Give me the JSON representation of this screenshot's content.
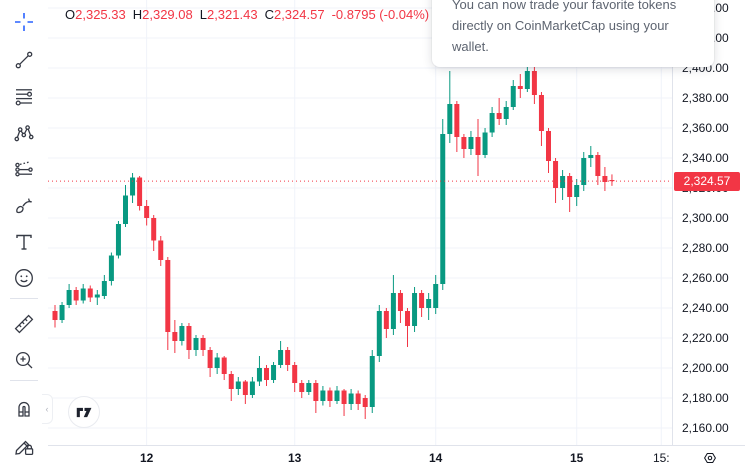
{
  "legend": {
    "items": [
      {
        "label": "O",
        "value": "2,325.33"
      },
      {
        "label": "H",
        "value": "2,329.08"
      },
      {
        "label": "L",
        "value": "2,321.43"
      },
      {
        "label": "C",
        "value": "2,324.57"
      }
    ],
    "change": "-0.8795 (-0.04%)"
  },
  "tooltip": {
    "text": "You can now trade your favorite tokens directly on CoinMarketCap using your wallet."
  },
  "price_scale": {
    "current_price_label": "2,324.57"
  },
  "toolbar": {
    "tools": [
      "crosshair",
      "trend-line",
      "horizontal-lines",
      "xabcd-pattern",
      "long-short-position",
      "brush",
      "text",
      "emoji",
      "measure",
      "zoom-in",
      "magnet",
      "drawing-mode-lock"
    ]
  },
  "branding": {
    "logo": "tradingview"
  },
  "colors": {
    "up": "#089981",
    "down": "#f23645",
    "accent": "#2962ff",
    "text": "#131722",
    "grid": "#f0f3fa",
    "axis_border": "#e0e3eb",
    "price_line": "#f23645",
    "price_tag_bg": "#f23645"
  },
  "chart_data": {
    "type": "candlestick",
    "title": "",
    "last_candle_ohlc": {
      "open": 2325.33,
      "high": 2329.08,
      "low": 2321.43,
      "close": 2324.57,
      "change": -0.8795,
      "change_pct": -0.04
    },
    "last_price": 2324.57,
    "price_axis": {
      "min": 2160,
      "max": 2440,
      "step": 20
    },
    "time_ticks": [
      {
        "label": "12",
        "index": 13,
        "major": true
      },
      {
        "label": "13",
        "index": 34,
        "major": true
      },
      {
        "label": "14",
        "index": 54,
        "major": true
      },
      {
        "label": "15",
        "index": 74,
        "major": true
      },
      {
        "label": "15:",
        "index": 86,
        "major": false
      }
    ],
    "candles": [
      [
        2238,
        2242,
        2227,
        2232
      ],
      [
        2232,
        2244,
        2230,
        2242
      ],
      [
        2242,
        2256,
        2240,
        2252
      ],
      [
        2252,
        2254,
        2242,
        2245
      ],
      [
        2245,
        2256,
        2243,
        2253
      ],
      [
        2253,
        2255,
        2244,
        2247
      ],
      [
        2247,
        2252,
        2242,
        2249
      ],
      [
        2248,
        2262,
        2246,
        2258
      ],
      [
        2258,
        2277,
        2255,
        2275
      ],
      [
        2275,
        2298,
        2273,
        2296
      ],
      [
        2296,
        2322,
        2294,
        2315
      ],
      [
        2315,
        2330,
        2310,
        2327
      ],
      [
        2327,
        2328,
        2305,
        2308
      ],
      [
        2308,
        2312,
        2295,
        2300
      ],
      [
        2300,
        2302,
        2278,
        2285
      ],
      [
        2285,
        2288,
        2268,
        2272
      ],
      [
        2272,
        2274,
        2212,
        2224
      ],
      [
        2224,
        2232,
        2210,
        2218
      ],
      [
        2218,
        2230,
        2215,
        2228
      ],
      [
        2228,
        2230,
        2206,
        2212
      ],
      [
        2212,
        2222,
        2208,
        2220
      ],
      [
        2220,
        2222,
        2208,
        2212
      ],
      [
        2212,
        2214,
        2194,
        2200
      ],
      [
        2200,
        2210,
        2196,
        2207
      ],
      [
        2207,
        2208,
        2192,
        2196
      ],
      [
        2196,
        2198,
        2178,
        2186
      ],
      [
        2186,
        2194,
        2182,
        2191
      ],
      [
        2191,
        2192,
        2176,
        2182
      ],
      [
        2182,
        2194,
        2180,
        2191
      ],
      [
        2191,
        2208,
        2188,
        2200
      ],
      [
        2200,
        2202,
        2188,
        2192
      ],
      [
        2192,
        2204,
        2190,
        2202
      ],
      [
        2202,
        2218,
        2200,
        2212
      ],
      [
        2212,
        2214,
        2198,
        2202
      ],
      [
        2202,
        2204,
        2184,
        2190
      ],
      [
        2190,
        2192,
        2180,
        2184
      ],
      [
        2184,
        2192,
        2182,
        2190
      ],
      [
        2190,
        2192,
        2170,
        2178
      ],
      [
        2178,
        2188,
        2175,
        2185
      ],
      [
        2185,
        2187,
        2174,
        2178
      ],
      [
        2178,
        2188,
        2176,
        2185
      ],
      [
        2185,
        2186,
        2168,
        2176
      ],
      [
        2176,
        2186,
        2172,
        2183
      ],
      [
        2183,
        2185,
        2172,
        2176
      ],
      [
        2180,
        2182,
        2166,
        2174
      ],
      [
        2174,
        2212,
        2170,
        2208
      ],
      [
        2208,
        2242,
        2204,
        2238
      ],
      [
        2238,
        2240,
        2220,
        2226
      ],
      [
        2226,
        2262,
        2222,
        2250
      ],
      [
        2250,
        2252,
        2230,
        2238
      ],
      [
        2238,
        2240,
        2214,
        2228
      ],
      [
        2228,
        2254,
        2224,
        2250
      ],
      [
        2250,
        2252,
        2234,
        2240
      ],
      [
        2240,
        2250,
        2232,
        2246
      ],
      [
        2240,
        2262,
        2236,
        2256
      ],
      [
        2256,
        2366,
        2252,
        2356
      ],
      [
        2356,
        2398,
        2350,
        2376
      ],
      [
        2376,
        2378,
        2344,
        2354
      ],
      [
        2354,
        2356,
        2340,
        2346
      ],
      [
        2346,
        2358,
        2342,
        2354
      ],
      [
        2354,
        2366,
        2328,
        2342
      ],
      [
        2342,
        2360,
        2340,
        2357
      ],
      [
        2357,
        2374,
        2354,
        2370
      ],
      [
        2370,
        2380,
        2362,
        2366
      ],
      [
        2366,
        2378,
        2362,
        2374
      ],
      [
        2374,
        2392,
        2372,
        2388
      ],
      [
        2388,
        2396,
        2380,
        2386
      ],
      [
        2386,
        2404,
        2384,
        2398
      ],
      [
        2398,
        2408,
        2376,
        2382
      ],
      [
        2382,
        2384,
        2348,
        2358
      ],
      [
        2358,
        2360,
        2330,
        2338
      ],
      [
        2338,
        2340,
        2310,
        2320
      ],
      [
        2320,
        2332,
        2312,
        2328
      ],
      [
        2328,
        2330,
        2304,
        2314
      ],
      [
        2314,
        2326,
        2308,
        2322
      ],
      [
        2322,
        2344,
        2318,
        2340
      ],
      [
        2340,
        2348,
        2334,
        2342
      ],
      [
        2342,
        2344,
        2322,
        2328
      ],
      [
        2328,
        2334,
        2318,
        2324
      ],
      [
        2325.33,
        2329.08,
        2321.43,
        2324.57
      ]
    ]
  }
}
